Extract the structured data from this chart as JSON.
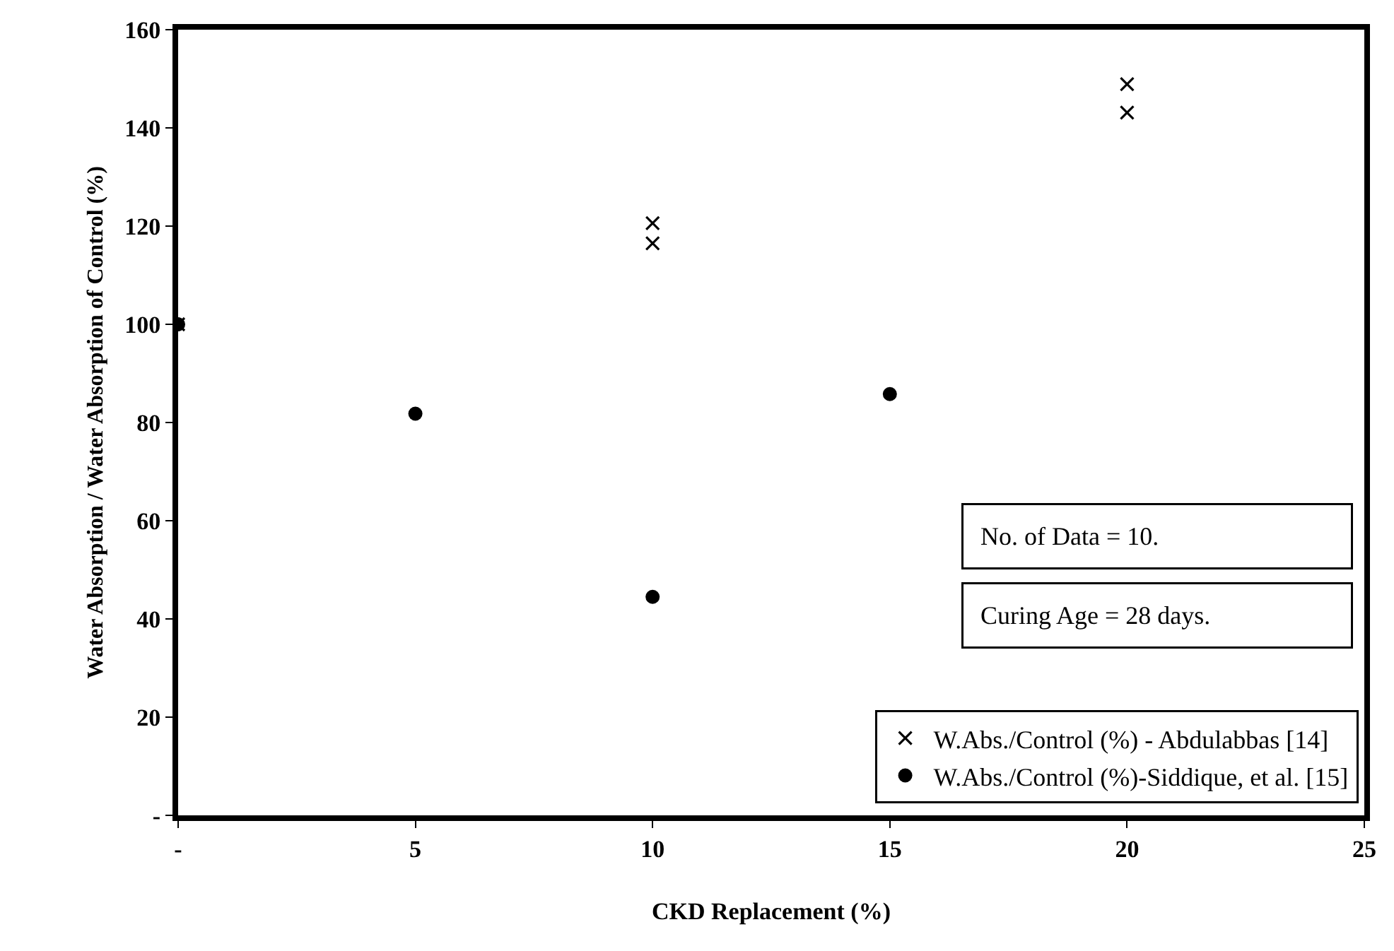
{
  "chart_data": {
    "type": "scatter",
    "xlabel": "CKD Replacement (%)",
    "ylabel": "Water Absorption / Water Absorption of Control (%)",
    "series": [
      {
        "name": "W.Abs./Control (%) - Abdulabbas [14]",
        "color": "#000000",
        "marker": "cross",
        "x": [
          0,
          10,
          10,
          20,
          20
        ],
        "values": [
          100,
          120.6,
          116.5,
          148.9,
          143.1
        ]
      },
      {
        "name": "W.Abs./Control (%)-Siddique, et al. [15]",
        "color": "#000000",
        "marker": "circle",
        "x": [
          0,
          5,
          10,
          15
        ],
        "values": [
          100,
          81.8,
          44.5,
          85.8
        ]
      }
    ],
    "xlim": [
      0,
      25
    ],
    "xticks": [
      {
        "value": 0,
        "label": "-"
      },
      5,
      10,
      15,
      20,
      25
    ],
    "ylim": [
      0,
      160
    ],
    "yticks": [
      {
        "value": 0,
        "label": "-"
      },
      20,
      40,
      60,
      80,
      100,
      120,
      140,
      160
    ],
    "annotations": [
      "No. of Data = 10.",
      "Curing Age = 28 days."
    ],
    "legend": "bottom right"
  }
}
